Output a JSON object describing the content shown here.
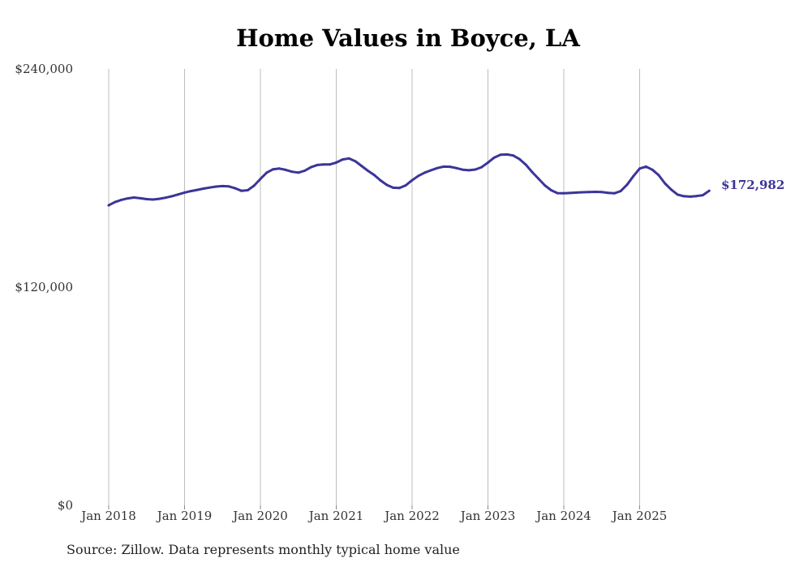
{
  "chart_data": {
    "type": "line",
    "title": "Home Values in Boyce, LA",
    "xlabel": "",
    "ylabel": "",
    "ylim": [
      0,
      240000
    ],
    "y_ticks": [
      {
        "value": 0,
        "label": "$0"
      },
      {
        "value": 120000,
        "label": "$120,000"
      },
      {
        "value": 240000,
        "label": "$240,000"
      }
    ],
    "x_ticks": [
      {
        "value": 2018.0,
        "label": "Jan 2018"
      },
      {
        "value": 2019.0,
        "label": "Jan 2019"
      },
      {
        "value": 2020.0,
        "label": "Jan 2020"
      },
      {
        "value": 2021.0,
        "label": "Jan 2021"
      },
      {
        "value": 2022.0,
        "label": "Jan 2022"
      },
      {
        "value": 2023.0,
        "label": "Jan 2023"
      },
      {
        "value": 2024.0,
        "label": "Jan 2024"
      },
      {
        "value": 2025.0,
        "label": "Jan 2025"
      }
    ],
    "xlim": [
      2018.0,
      2026.0
    ],
    "grid": "vertical",
    "color": "#3b3599",
    "series": [
      {
        "name": "Typical home value",
        "x": [
          2018.0,
          2018.083,
          2018.167,
          2018.25,
          2018.333,
          2018.417,
          2018.5,
          2018.583,
          2018.667,
          2018.75,
          2018.833,
          2018.917,
          2019.0,
          2019.083,
          2019.167,
          2019.25,
          2019.333,
          2019.417,
          2019.5,
          2019.583,
          2019.667,
          2019.75,
          2019.833,
          2019.917,
          2020.0,
          2020.083,
          2020.167,
          2020.25,
          2020.333,
          2020.417,
          2020.5,
          2020.583,
          2020.667,
          2020.75,
          2020.833,
          2020.917,
          2021.0,
          2021.083,
          2021.167,
          2021.25,
          2021.333,
          2021.417,
          2021.5,
          2021.583,
          2021.667,
          2021.75,
          2021.833,
          2021.917,
          2022.0,
          2022.083,
          2022.167,
          2022.25,
          2022.333,
          2022.417,
          2022.5,
          2022.583,
          2022.667,
          2022.75,
          2022.833,
          2022.917,
          2023.0,
          2023.083,
          2023.167,
          2023.25,
          2023.333,
          2023.417,
          2023.5,
          2023.583,
          2023.667,
          2023.75,
          2023.833,
          2023.917,
          2024.0,
          2024.083,
          2024.167,
          2024.25,
          2024.333,
          2024.417,
          2024.5,
          2024.583,
          2024.667,
          2024.75,
          2024.833,
          2024.917,
          2025.0,
          2025.083,
          2025.167,
          2025.25,
          2025.333,
          2025.417,
          2025.5,
          2025.583,
          2025.667,
          2025.75,
          2025.833,
          2025.917
        ],
        "values": [
          165000,
          166800,
          168000,
          168800,
          169300,
          168900,
          168400,
          168200,
          168600,
          169200,
          170000,
          171000,
          172000,
          172800,
          173500,
          174200,
          174800,
          175300,
          175600,
          175400,
          174400,
          173000,
          173300,
          175800,
          179500,
          183000,
          184800,
          185200,
          184500,
          183500,
          183000,
          184000,
          186000,
          187200,
          187500,
          187500,
          188500,
          190200,
          190800,
          189300,
          186700,
          184000,
          181700,
          178700,
          176200,
          174700,
          174500,
          176000,
          178800,
          181200,
          183000,
          184300,
          185500,
          186300,
          186200,
          185500,
          184600,
          184300,
          184700,
          186000,
          188500,
          191300,
          192800,
          193000,
          192400,
          190400,
          187300,
          183300,
          179600,
          176000,
          173300,
          171700,
          171600,
          171800,
          172000,
          172200,
          172300,
          172400,
          172300,
          171900,
          171600,
          172800,
          176300,
          181000,
          185200,
          186300,
          184600,
          181600,
          177100,
          173600,
          170900,
          170000,
          169800,
          170100,
          170600,
          172982
        ]
      }
    ],
    "end_label": "$172,982"
  },
  "footer": {
    "source": "Source: Zillow. Data represents monthly typical home value"
  }
}
